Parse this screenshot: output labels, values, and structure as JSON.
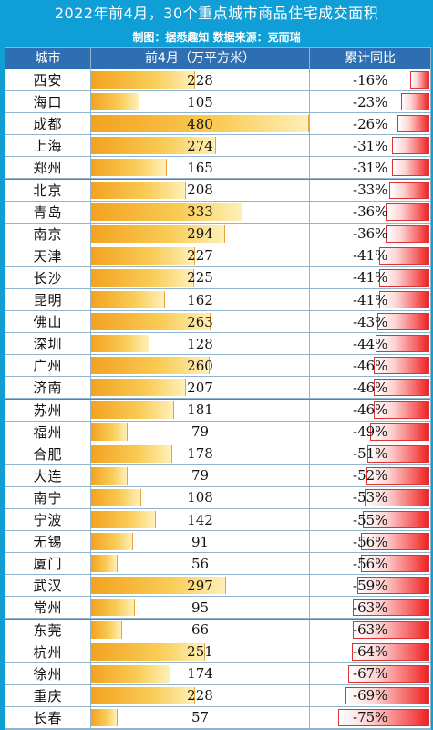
{
  "header": {
    "title": "2022年前4月，30个重点城市商品住宅成交面积",
    "subtitle": "制图：据悉趣知  数据来源：克而瑞"
  },
  "colors": {
    "background": "#0f9fd6",
    "header_bg": "#2e6fb4",
    "area_bar": "#f7b733",
    "yoy_bar": "#ee2020"
  },
  "chart_data": {
    "type": "table",
    "columns": [
      "城市",
      "前4月（万平方米）",
      "累计同比"
    ],
    "rows": [
      {
        "city": "西安",
        "area": 228,
        "yoy": "-16%",
        "yoy_value": -16
      },
      {
        "city": "海口",
        "area": 105,
        "yoy": "-23%",
        "yoy_value": -23
      },
      {
        "city": "成都",
        "area": 480,
        "yoy": "-26%",
        "yoy_value": -26
      },
      {
        "city": "上海",
        "area": 274,
        "yoy": "-31%",
        "yoy_value": -31
      },
      {
        "city": "郑州",
        "area": 165,
        "yoy": "-31%",
        "yoy_value": -31
      },
      {
        "city": "北京",
        "area": 208,
        "yoy": "-33%",
        "yoy_value": -33
      },
      {
        "city": "青岛",
        "area": 333,
        "yoy": "-36%",
        "yoy_value": -36
      },
      {
        "city": "南京",
        "area": 294,
        "yoy": "-36%",
        "yoy_value": -36
      },
      {
        "city": "天津",
        "area": 227,
        "yoy": "-41%",
        "yoy_value": -41
      },
      {
        "city": "长沙",
        "area": 225,
        "yoy": "-41%",
        "yoy_value": -41
      },
      {
        "city": "昆明",
        "area": 162,
        "yoy": "-41%",
        "yoy_value": -41
      },
      {
        "city": "佛山",
        "area": 263,
        "yoy": "-43%",
        "yoy_value": -43
      },
      {
        "city": "深圳",
        "area": 128,
        "yoy": "-44%",
        "yoy_value": -44
      },
      {
        "city": "广州",
        "area": 260,
        "yoy": "-46%",
        "yoy_value": -46
      },
      {
        "city": "济南",
        "area": 207,
        "yoy": "-46%",
        "yoy_value": -46
      },
      {
        "city": "苏州",
        "area": 181,
        "yoy": "-46%",
        "yoy_value": -46
      },
      {
        "city": "福州",
        "area": 79,
        "yoy": "-49%",
        "yoy_value": -49
      },
      {
        "city": "合肥",
        "area": 178,
        "yoy": "-51%",
        "yoy_value": -51
      },
      {
        "city": "大连",
        "area": 79,
        "yoy": "-52%",
        "yoy_value": -52
      },
      {
        "city": "南宁",
        "area": 108,
        "yoy": "-53%",
        "yoy_value": -53
      },
      {
        "city": "宁波",
        "area": 142,
        "yoy": "-55%",
        "yoy_value": -55
      },
      {
        "city": "无锡",
        "area": 91,
        "yoy": "-56%",
        "yoy_value": -56
      },
      {
        "city": "厦门",
        "area": 56,
        "yoy": "-56%",
        "yoy_value": -56
      },
      {
        "city": "武汉",
        "area": 297,
        "yoy": "-59%",
        "yoy_value": -59
      },
      {
        "city": "常州",
        "area": 95,
        "yoy": "-63%",
        "yoy_value": -63
      },
      {
        "city": "东莞",
        "area": 66,
        "yoy": "-63%",
        "yoy_value": -63
      },
      {
        "city": "杭州",
        "area": 251,
        "yoy": "-64%",
        "yoy_value": -64
      },
      {
        "city": "徐州",
        "area": 174,
        "yoy": "-67%",
        "yoy_value": -67
      },
      {
        "city": "重庆",
        "area": 228,
        "yoy": "-69%",
        "yoy_value": -69
      },
      {
        "city": "长春",
        "area": 57,
        "yoy": "-75%",
        "yoy_value": -75
      }
    ],
    "area_max": 480,
    "yoy_max_abs": 75
  }
}
